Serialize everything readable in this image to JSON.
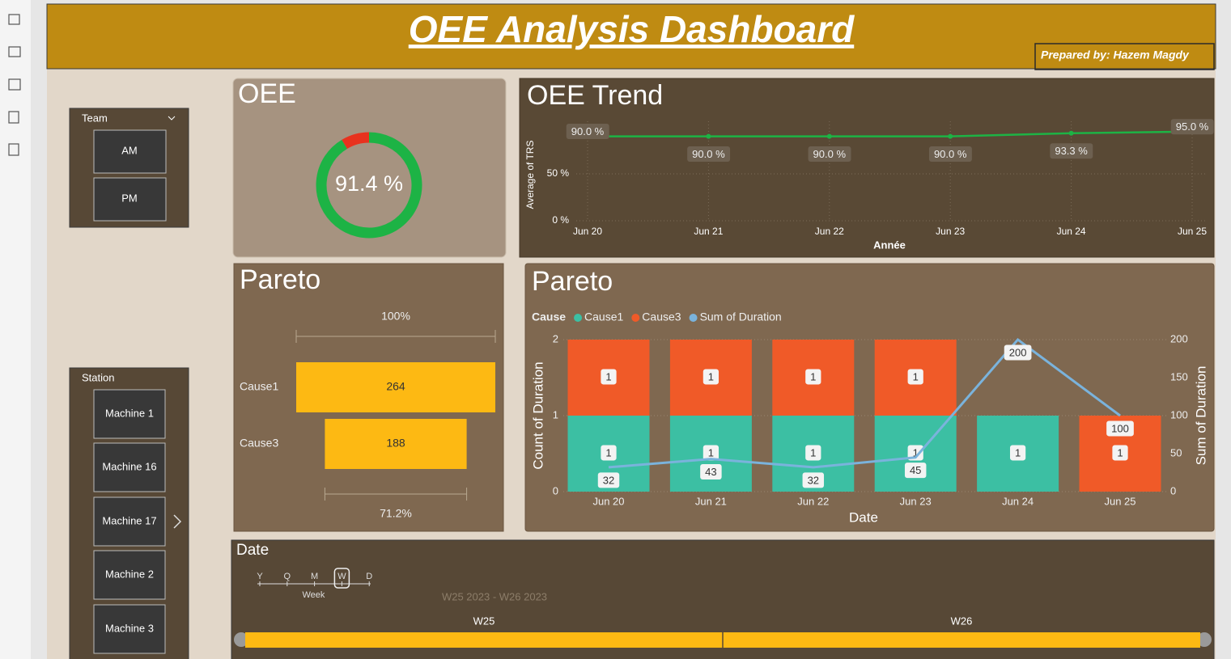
{
  "header": {
    "title": "OEE Analysis Dashboard",
    "prepared_by": "Prepared by: Hazem Magdy"
  },
  "team_slicer": {
    "title": "Team",
    "options": [
      "AM",
      "PM"
    ]
  },
  "station_slicer": {
    "title": "Station",
    "options": [
      "Machine 1",
      "Machine 16",
      "Machine 17",
      "Machine 2",
      "Machine 3"
    ]
  },
  "date_slicer": {
    "title": "Date",
    "granularity": [
      "Y",
      "Q",
      "M",
      "W",
      "D"
    ],
    "selected": "W",
    "selected_label": "Week",
    "range": "W25 2023 - W26 2023",
    "periods": [
      "W25",
      "W26"
    ]
  },
  "chart_data": [
    {
      "type": "donut",
      "title": "OEE",
      "value": 91.4,
      "value_label": "91.4 %",
      "range": [
        0,
        100
      ],
      "color": "#1db345",
      "remainder_color": "#e8321e"
    },
    {
      "type": "line",
      "title": "OEE Trend",
      "y_label": "Average of TRS",
      "x_label": "Année",
      "categories": [
        "Jun 20",
        "Jun 21",
        "Jun 22",
        "Jun 23",
        "Jun 24",
        "Jun 25"
      ],
      "values": [
        90,
        90,
        90,
        90,
        93.3,
        95
      ],
      "value_labels": [
        "90.0 %",
        "90.0 %",
        "90.0 %",
        "90.0 %",
        "93.3 %",
        "95.0 %"
      ],
      "color": "#1db345",
      "ylim": [
        0,
        100
      ],
      "yticks": [
        {
          "value": 0,
          "label": "0 %"
        },
        {
          "value": 50,
          "label": "50 %"
        }
      ],
      "grid": true
    },
    {
      "type": "funnel",
      "title": "Pareto",
      "categories": [
        "Cause1",
        "Cause3"
      ],
      "values": [
        264,
        188
      ],
      "color": "#fdb913",
      "conversion": [
        100,
        71.2
      ],
      "conversion_labels": [
        "100%",
        "71.2%"
      ]
    },
    {
      "type": "combo",
      "title": "Pareto",
      "legend_title": "Cause",
      "y_label": "Count of Duration",
      "y2_label": "Sum of Duration",
      "x_label": "Date",
      "categories": [
        "Jun 20",
        "Jun 21",
        "Jun 22",
        "Jun 23",
        "Jun 24",
        "Jun 25"
      ],
      "series": [
        {
          "name": "Cause1",
          "color": "#3cbfa3",
          "values": [
            1,
            1,
            1,
            1,
            1,
            null
          ]
        },
        {
          "name": "Cause3",
          "color": "#f05a28",
          "values": [
            1,
            1,
            1,
            1,
            null,
            1
          ]
        },
        {
          "name": "Sum of Duration",
          "color": "#7ab3dc",
          "type": "line",
          "axis": "y2",
          "values": [
            32,
            43,
            32,
            45,
            200,
            100
          ]
        }
      ],
      "ylim": [
        0,
        2
      ],
      "yticks": [
        0,
        1,
        2
      ],
      "y2lim": [
        0,
        200
      ],
      "y2ticks": [
        0,
        50,
        100,
        150,
        200
      ],
      "grid": true
    }
  ]
}
